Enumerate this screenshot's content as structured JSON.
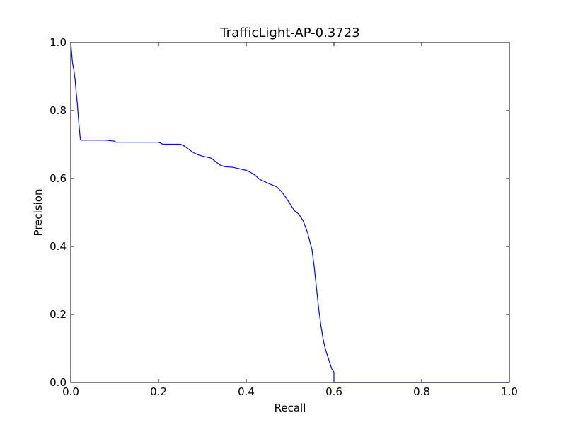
{
  "chart_data": {
    "type": "line",
    "title": "TrafficLight-AP-0.3723",
    "xlabel": "Recall",
    "ylabel": "Precision",
    "xlim": [
      0.0,
      1.0
    ],
    "ylim": [
      0.0,
      1.0
    ],
    "xticks": [
      "0.0",
      "0.2",
      "0.4",
      "0.6",
      "0.8",
      "1.0"
    ],
    "yticks": [
      "0.0",
      "0.2",
      "0.4",
      "0.6",
      "0.8",
      "1.0"
    ],
    "grid": false,
    "line_color": "#0000ff",
    "series": [
      {
        "x": [
          0.0,
          0.002,
          0.004,
          0.007,
          0.01,
          0.012,
          0.015,
          0.018,
          0.02,
          0.022,
          0.025,
          0.03,
          0.05,
          0.08,
          0.1,
          0.103,
          0.13,
          0.16,
          0.2,
          0.21,
          0.25,
          0.26,
          0.27,
          0.28,
          0.29,
          0.3,
          0.32,
          0.33,
          0.34,
          0.35,
          0.37,
          0.38,
          0.4,
          0.41,
          0.42,
          0.43,
          0.45,
          0.47,
          0.48,
          0.49,
          0.5,
          0.51,
          0.52,
          0.53,
          0.54,
          0.55,
          0.555,
          0.56,
          0.565,
          0.57,
          0.575,
          0.58,
          0.585,
          0.59,
          0.595,
          0.6,
          0.6,
          0.7,
          0.8,
          0.9,
          1.0
        ],
        "y": [
          1.0,
          0.97,
          0.94,
          0.92,
          0.89,
          0.86,
          0.82,
          0.77,
          0.74,
          0.715,
          0.713,
          0.713,
          0.713,
          0.713,
          0.71,
          0.707,
          0.707,
          0.707,
          0.707,
          0.701,
          0.701,
          0.695,
          0.685,
          0.676,
          0.67,
          0.666,
          0.66,
          0.65,
          0.64,
          0.635,
          0.633,
          0.63,
          0.624,
          0.618,
          0.61,
          0.598,
          0.586,
          0.575,
          0.562,
          0.545,
          0.525,
          0.505,
          0.495,
          0.475,
          0.44,
          0.39,
          0.34,
          0.28,
          0.22,
          0.17,
          0.13,
          0.1,
          0.08,
          0.06,
          0.04,
          0.03,
          0.0,
          0.0,
          0.0,
          0.0,
          0.0
        ]
      }
    ]
  }
}
